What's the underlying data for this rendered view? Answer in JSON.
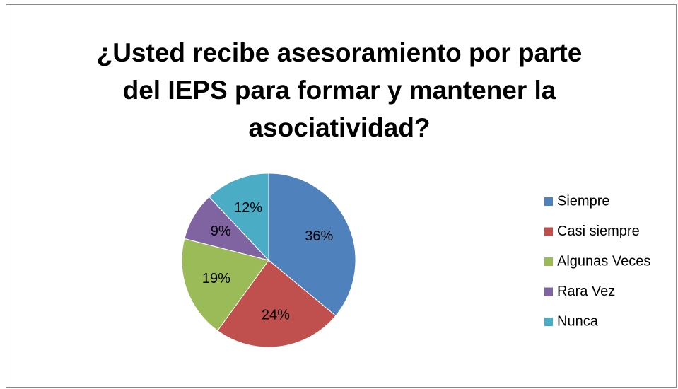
{
  "chart_data": {
    "type": "pie",
    "title": "¿Usted recibe asesoramiento por parte del IEPS para formar y mantener la asociatividad?",
    "categories": [
      "Siempre",
      "Casi siempre",
      "Algunas Veces",
      "Rara Vez",
      "Nunca"
    ],
    "values": [
      36,
      24,
      19,
      9,
      12
    ],
    "value_labels": [
      "36%",
      "24%",
      "19%",
      "9%",
      "12%"
    ],
    "colors": [
      "#4f81bd",
      "#c0504d",
      "#9bbb59",
      "#8064a2",
      "#4bacc6"
    ],
    "legend": "right"
  }
}
